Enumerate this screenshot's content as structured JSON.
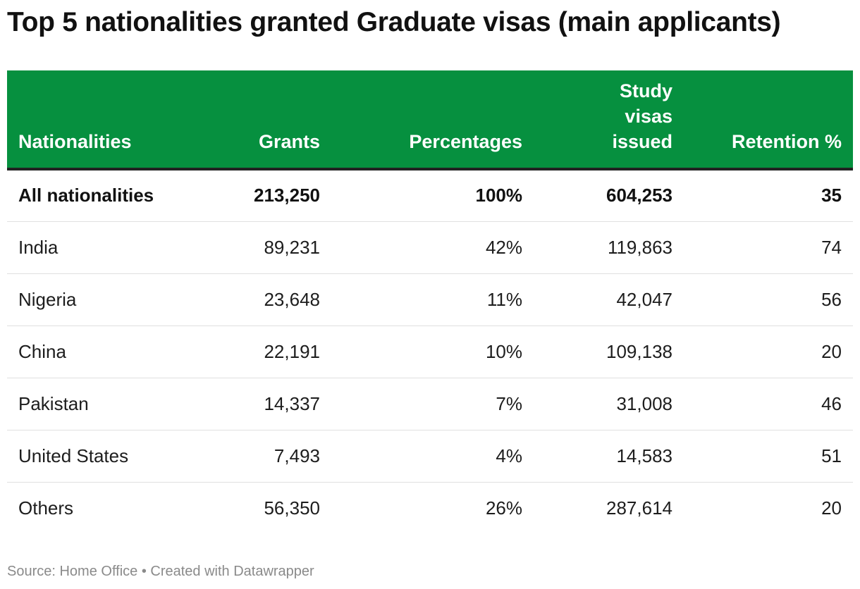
{
  "title": "Top 5 nationalities granted Graduate visas (main applicants)",
  "source": "Source: Home Office • Created with Datawrapper",
  "chart_data": {
    "type": "table",
    "title": "Top 5 nationalities granted Graduate visas (main applicants)",
    "columns": [
      {
        "label": "Nationalities",
        "lines": [
          "Nationalities"
        ]
      },
      {
        "label": "Grants",
        "lines": [
          "Grants"
        ]
      },
      {
        "label": "Percentages",
        "lines": [
          "Percentages"
        ]
      },
      {
        "label": "Study visas issued",
        "lines": [
          "Study",
          "visas",
          "issued"
        ]
      },
      {
        "label": "Retention %",
        "lines": [
          "Retention %"
        ]
      }
    ],
    "rows": [
      {
        "cells": [
          "All nationalities",
          "213,250",
          "100%",
          "604,253",
          "35"
        ],
        "bold": true
      },
      {
        "cells": [
          "India",
          "89,231",
          "42%",
          "119,863",
          "74"
        ]
      },
      {
        "cells": [
          "Nigeria",
          "23,648",
          "11%",
          "42,047",
          "56"
        ]
      },
      {
        "cells": [
          "China",
          "22,191",
          "10%",
          "109,138",
          "20"
        ]
      },
      {
        "cells": [
          "Pakistan",
          "14,337",
          "7%",
          "31,008",
          "46"
        ]
      },
      {
        "cells": [
          "United States",
          "7,493",
          "4%",
          "14,583",
          "51"
        ]
      },
      {
        "cells": [
          "Others",
          "56,350",
          "26%",
          "287,614",
          "20"
        ]
      }
    ],
    "header_color": "#06903f",
    "header_text_color": "#ffffff"
  }
}
